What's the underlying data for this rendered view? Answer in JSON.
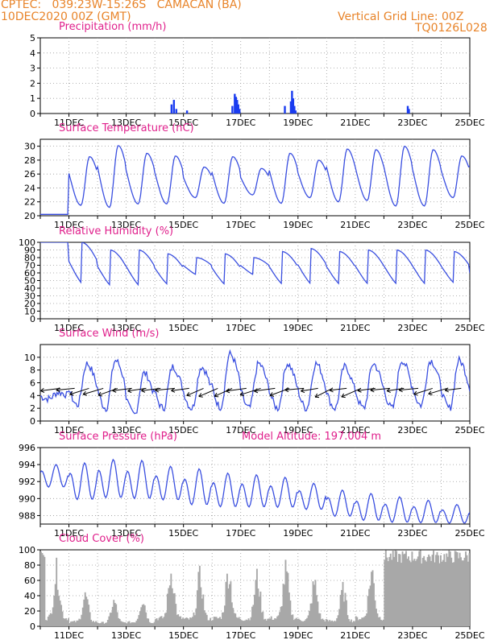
{
  "header": {
    "line1": "CPTEC:   039:23W-15:26S   CAMACAN (BA)",
    "line2": "10DEC2020 00Z (GMT)",
    "right1": "Vertical Grid Line: 00Z",
    "right2": "TQ0126L028"
  },
  "colors": {
    "header": "#e8842a",
    "title": "#e0208c",
    "line": "#3a4fe0",
    "bar": "#1a3cf0",
    "cloud": "#a8a8a8",
    "wind_arrow": "#000000",
    "grid": "#9a9a9a"
  },
  "chart_data": [
    {
      "type": "bar",
      "title": "Precipitation (mm/h)",
      "x_range": [
        "10DEC2020 00Z",
        "25DEC2020 00Z"
      ],
      "x_ticks": [
        "11DEC",
        "13DEC",
        "15DEC",
        "17DEC",
        "19DEC",
        "21DEC",
        "23DEC",
        "25DEC"
      ],
      "ylim": [
        0,
        5
      ],
      "y_ticks": [
        0,
        1,
        2,
        3,
        4,
        5
      ],
      "grid": true,
      "bars": [
        {
          "x": "14DEC 14Z",
          "value": 0.6
        },
        {
          "x": "14DEC 16Z",
          "value": 0.9
        },
        {
          "x": "14DEC 18Z",
          "value": 0.3
        },
        {
          "x": "15DEC 03Z",
          "value": 0.2
        },
        {
          "x": "16DEC 17Z",
          "value": 0.5
        },
        {
          "x": "16DEC 19Z",
          "value": 1.3
        },
        {
          "x": "16DEC 20Z",
          "value": 1.1
        },
        {
          "x": "16DEC 21Z",
          "value": 0.9
        },
        {
          "x": "16DEC 22Z",
          "value": 0.6
        },
        {
          "x": "16DEC 23Z",
          "value": 0.3
        },
        {
          "x": "18DEC 13Z",
          "value": 0.5
        },
        {
          "x": "18DEC 18Z",
          "value": 0.8
        },
        {
          "x": "18DEC 19Z",
          "value": 1.5
        },
        {
          "x": "18DEC 20Z",
          "value": 1.0
        },
        {
          "x": "18DEC 21Z",
          "value": 0.5
        },
        {
          "x": "18DEC 22Z",
          "value": 0.2
        },
        {
          "x": "22DEC 20Z",
          "value": 0.5
        },
        {
          "x": "22DEC 21Z",
          "value": 0.3
        }
      ]
    },
    {
      "type": "line",
      "title": "Surface Temperature (nC)",
      "x_range": [
        "10DEC2020 00Z",
        "25DEC2020 00Z"
      ],
      "x_ticks": [
        "11DEC",
        "13DEC",
        "15DEC",
        "17DEC",
        "19DEC",
        "21DEC",
        "23DEC",
        "25DEC"
      ],
      "ylim": [
        20,
        31
      ],
      "y_ticks": [
        20,
        22,
        24,
        26,
        28,
        30
      ],
      "grid": true,
      "daily_max": [
        null,
        28.5,
        30.1,
        29.0,
        28.6,
        27.0,
        28.5,
        26.8,
        29.0,
        28.0,
        29.6,
        29.5,
        30.0,
        29.5,
        28.6,
        29.6
      ],
      "daily_min": [
        20.2,
        21.5,
        21.2,
        21.7,
        21.7,
        22.6,
        21.8,
        23.0,
        21.8,
        22.6,
        22.0,
        22.2,
        21.4,
        21.4,
        22.6,
        22.6
      ]
    },
    {
      "type": "line",
      "title": "Relative Humidity (%)",
      "x_range": [
        "10DEC2020 00Z",
        "25DEC2020 00Z"
      ],
      "x_ticks": [
        "11DEC",
        "13DEC",
        "15DEC",
        "17DEC",
        "19DEC",
        "21DEC",
        "23DEC",
        "25DEC"
      ],
      "ylim": [
        0,
        100
      ],
      "y_ticks": [
        0,
        10,
        20,
        30,
        40,
        50,
        60,
        70,
        80,
        90,
        100
      ],
      "grid": true,
      "daily_min": [
        null,
        40,
        38,
        38,
        40,
        55,
        40,
        55,
        40,
        40,
        40,
        40,
        40,
        40,
        42,
        38
      ],
      "daily_max": [
        100,
        100,
        90,
        90,
        85,
        80,
        85,
        80,
        88,
        92,
        88,
        90,
        90,
        90,
        88,
        75
      ]
    },
    {
      "type": "line",
      "title": "Surface Wind (m/s)",
      "x_range": [
        "10DEC2020 00Z",
        "25DEC2020 00Z"
      ],
      "x_ticks": [
        "11DEC",
        "13DEC",
        "15DEC",
        "17DEC",
        "19DEC",
        "21DEC",
        "23DEC",
        "25DEC"
      ],
      "ylim": [
        0,
        12
      ],
      "y_ticks": [
        0,
        2,
        4,
        6,
        8,
        10
      ],
      "grid": true,
      "daily_min": [
        3.5,
        2.5,
        2.0,
        1.0,
        2.0,
        2.0,
        2.2,
        2.0,
        2.0,
        2.0,
        2.0,
        2.0,
        2.0,
        2.5,
        2.0,
        2.5
      ],
      "daily_max": [
        4.5,
        9.0,
        9.5,
        7.5,
        8.5,
        8.5,
        10.5,
        9.0,
        9.0,
        9.0,
        8.5,
        9.0,
        9.5,
        9.5,
        9.5,
        9.0
      ],
      "arrows_note": "wind direction vectors drawn at 6-hourly intervals, blowing mostly toward west/south-west"
    },
    {
      "type": "line",
      "title": "Surface Pressure (hPa)",
      "annotation": "Model Altitude: 197.004 m",
      "x_range": [
        "10DEC2020 00Z",
        "25DEC2020 00Z"
      ],
      "x_ticks": [
        "11DEC",
        "13DEC",
        "15DEC",
        "17DEC",
        "19DEC",
        "21DEC",
        "23DEC",
        "25DEC"
      ],
      "ylim": [
        987,
        996
      ],
      "y_ticks": [
        988,
        990,
        992,
        994,
        996
      ],
      "grid": true,
      "daily_max": [
        994.0,
        994.2,
        994.6,
        994.5,
        993.8,
        993.5,
        993.0,
        992.8,
        992.5,
        991.8,
        991.0,
        990.6,
        990.2,
        989.8,
        989.3,
        989.0
      ],
      "daily_min": [
        991.0,
        989.3,
        989.5,
        989.4,
        989.3,
        988.7,
        988.5,
        988.5,
        988.5,
        988.3,
        987.5,
        987.0,
        986.8,
        986.8,
        986.8,
        987.0
      ]
    },
    {
      "type": "area",
      "title": "Cloud Cover (%)",
      "x_range": [
        "10DEC2020 00Z",
        "25DEC2020 00Z"
      ],
      "x_ticks": [
        "11DEC",
        "13DEC",
        "15DEC",
        "17DEC",
        "19DEC",
        "21DEC",
        "23DEC",
        "25DEC"
      ],
      "ylim": [
        0,
        100
      ],
      "y_ticks": [
        0,
        20,
        40,
        60,
        80,
        100
      ],
      "grid": true,
      "daily_peak": [
        90,
        50,
        40,
        45,
        90,
        80,
        90,
        80,
        90,
        70,
        60,
        90,
        95,
        100,
        95
      ],
      "note": "cloud cover nearly continuous 80-100% from 22DEC onwards"
    }
  ]
}
